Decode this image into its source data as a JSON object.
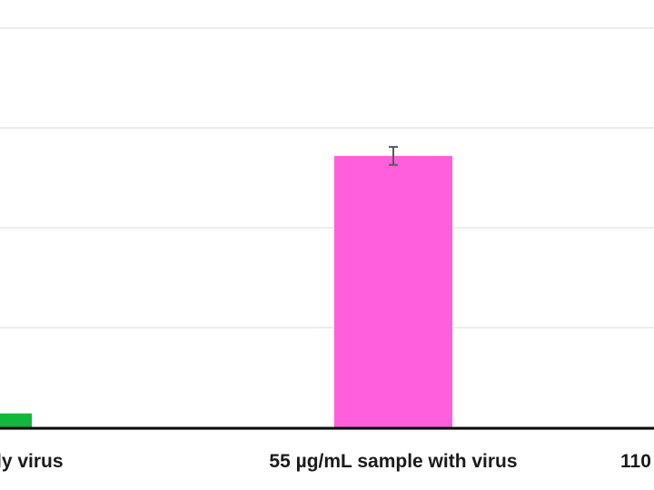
{
  "chart_data": {
    "type": "bar",
    "categories": [
      "ly virus",
      "55 µg/mL sample with virus",
      "110"
    ],
    "values": [
      0.07,
      1.36,
      null
    ],
    "errors": [
      0.013,
      0.045,
      null
    ],
    "bar_colors": [
      "#11b83c",
      "#ff5fdc",
      null
    ],
    "ylim": [
      0,
      2
    ],
    "grid": true,
    "grid_step": 0.5,
    "gridline_color": "#d9d9d9",
    "axis_color": "#000000",
    "title": "",
    "xlabel": "",
    "ylabel": ""
  }
}
